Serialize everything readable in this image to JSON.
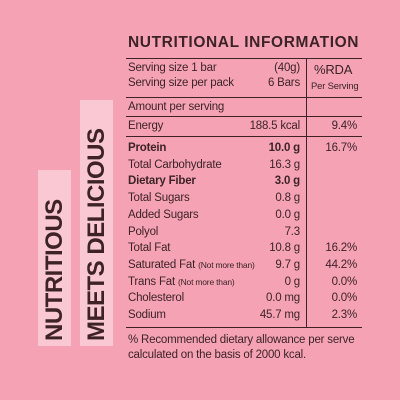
{
  "tagline": [
    "NUTRITIOUS",
    "MEETS DELICIOUS"
  ],
  "header": {
    "title": "NUTRITIONAL INFORMATION"
  },
  "serving": [
    {
      "label": "Serving size 1 bar",
      "value": "(40g)"
    },
    {
      "label": "Serving size per pack",
      "value": "6 Bars"
    }
  ],
  "rda_header": [
    "%RDA",
    "Per Serving"
  ],
  "amount_header": "Amount per serving",
  "energy": {
    "label": "Energy",
    "value": "188.5 kcal",
    "rda": "9.4%"
  },
  "rows": [
    {
      "label": "Protein",
      "value": "10.0 g",
      "rda": "16.7%",
      "bold": true
    },
    {
      "label": "Total Carbohydrate",
      "value": "16.3 g"
    },
    {
      "label": "Dietary Fiber",
      "value": "3.0 g",
      "bold": true
    },
    {
      "label": "Total Sugars",
      "value": "0.8 g"
    },
    {
      "label": "Added Sugars",
      "value": "0.0 g"
    },
    {
      "label": "Polyol",
      "value": "7.3"
    },
    {
      "label": "Total Fat",
      "value": "10.8 g",
      "rda": "16.2%"
    },
    {
      "label": "Saturated Fat",
      "note": "(Not more than)",
      "value": "9.7 g",
      "rda": "44.2%"
    },
    {
      "label": "Trans Fat",
      "note": "(Not more than)",
      "value": "0 g",
      "rda": "0.0%"
    },
    {
      "label": "Cholesterol",
      "value": "0.0 mg",
      "rda": "0.0%"
    },
    {
      "label": "Sodium",
      "value": "45.7 mg",
      "rda": "2.3%"
    }
  ],
  "footnote": [
    "% Recommended dietary allowance per serve",
    "calculated on the basis of 2000 kcal."
  ]
}
